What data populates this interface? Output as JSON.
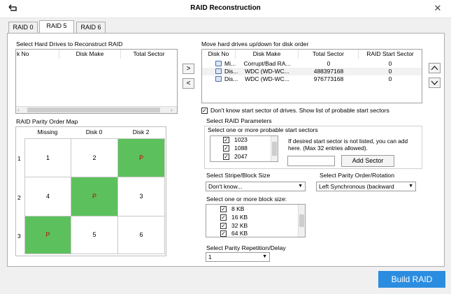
{
  "window": {
    "title": "RAID Reconstruction"
  },
  "tabs": [
    "RAID 0",
    "RAID 5",
    "RAID 6"
  ],
  "left": {
    "select_label": "Select Hard Drives to Reconstruct RAID",
    "columns": [
      "k No",
      "Disk Make",
      "Total Sector"
    ],
    "parity_map_label": "RAID Parity Order Map",
    "map_headers": [
      "Missing",
      "Disk 0",
      "Disk 2"
    ],
    "map_rows": [
      {
        "num": "1",
        "cells": [
          "1",
          "2",
          "P"
        ]
      },
      {
        "num": "2",
        "cells": [
          "4",
          "P",
          "3"
        ]
      },
      {
        "num": "3",
        "cells": [
          "P",
          "5",
          "6"
        ]
      }
    ]
  },
  "right": {
    "move_label": "Move hard drives up/down for disk order",
    "columns": [
      "Disk No",
      "Disk Make",
      "Total Sector",
      "RAID Start Sector"
    ],
    "disks": [
      {
        "no": "Mi...",
        "make": "Corrupt/Bad RA...",
        "total": "0",
        "start": "0"
      },
      {
        "no": "Dis...",
        "make": "WDC (WD-WC...",
        "total": "488397168",
        "start": "0"
      },
      {
        "no": "Dis...",
        "make": "WDC (WD-WC...",
        "total": "976773168",
        "start": "0"
      }
    ],
    "dont_know_label": "Don't know start sector of drives. Show list of probable start sectors",
    "params_label": "Select RAID Parameters",
    "start_sectors_label": "Select one or more probable start sectors",
    "start_sectors": [
      "1023",
      "1088",
      "2047"
    ],
    "not_listed_text": "If desired start sector is not listed, you can add here. (Max 32 entries allowed).",
    "add_sector_label": "Add Sector",
    "sector_input_value": "",
    "stripe_label": "Select Stripe/Block Size",
    "stripe_value": "Don't know...",
    "block_sizes_label": "Select one or more block size:",
    "block_sizes": [
      "8 KB",
      "16 KB",
      "32 KB",
      "64 KB"
    ],
    "parity_order_label": "Select Parity Order/Rotation",
    "parity_order_value": "Left Synchronous (backward",
    "repetition_label": "Select Parity Repetition/Delay",
    "repetition_value": "1"
  },
  "buttons": {
    "move_right": ">",
    "move_left": "<",
    "move_up": "^",
    "move_down": "v",
    "build": "Build RAID"
  },
  "icons": {
    "check": "✓",
    "dropdown": "▼"
  },
  "colors": {
    "accent": "#2b8de0",
    "parity_green": "#5cc15c",
    "parity_text": "#c40000"
  }
}
